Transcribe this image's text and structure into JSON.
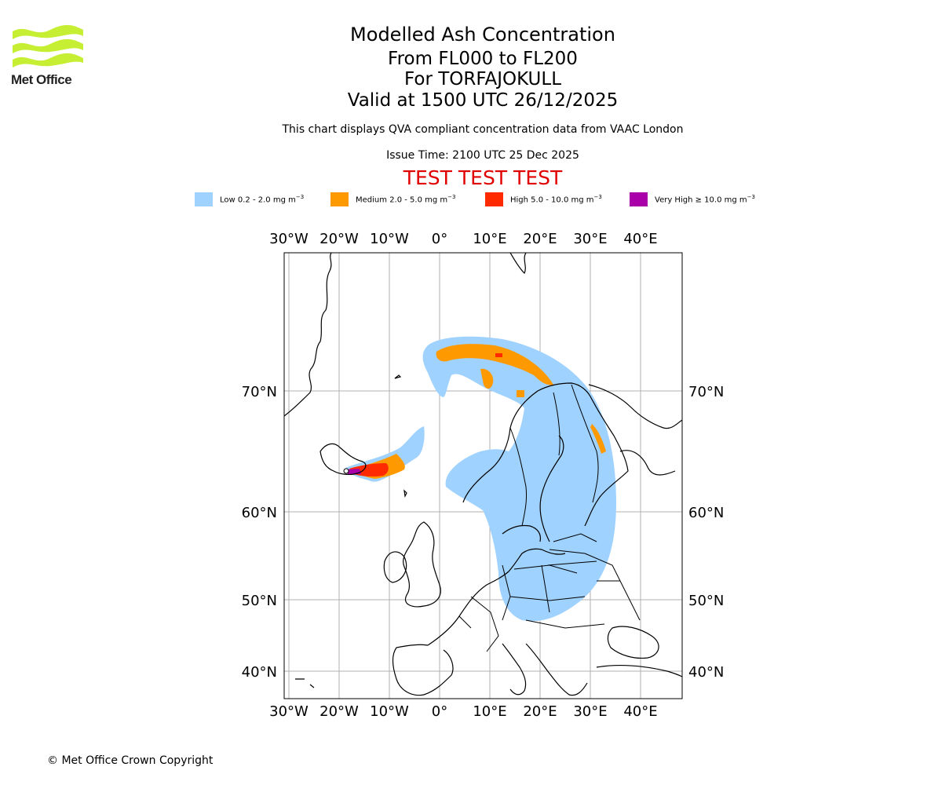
{
  "logo": {
    "name": "Met Office",
    "color": "#c6ef33"
  },
  "titles": [
    "Modelled Ash Concentration",
    "From FL000 to FL200",
    "For TORFAJOKULL",
    "Valid at 1500 UTC 26/12/2025"
  ],
  "subtitle": "This chart displays QVA compliant concentration data from VAAC London",
  "issue_time": "Issue Time: 2100 UTC 25 Dec 2025",
  "test_banner": "TEST TEST TEST",
  "legend": [
    {
      "name": "Low",
      "range": "0.2 - 2.0",
      "unit": "mg m",
      "exp": "−3",
      "color": "#a0d2ff"
    },
    {
      "name": "Medium",
      "range": "2.0 - 5.0",
      "unit": "mg m",
      "exp": "−3",
      "color": "#ff9900"
    },
    {
      "name": "High",
      "range": "5.0 - 10.0",
      "unit": "mg m",
      "exp": "−3",
      "color": "#ff2a00"
    },
    {
      "name": "Very High",
      "range": "≥ 10.0",
      "unit": "mg m",
      "exp": "−3",
      "color": "#aa00aa"
    }
  ],
  "map": {
    "lon_labels": [
      "30°W",
      "20°W",
      "10°W",
      "0°",
      "10°E",
      "20°E",
      "30°E",
      "40°E"
    ],
    "lat_labels": [
      "70°N",
      "60°N",
      "50°N",
      "40°N"
    ],
    "lons": [
      -30,
      -20,
      -10,
      0,
      10,
      20,
      30,
      40
    ],
    "lats": [
      70,
      60,
      50,
      40
    ],
    "grid": true,
    "source_volcano": "TORFAJOKULL"
  },
  "copyright": "© Met Office Crown Copyright"
}
